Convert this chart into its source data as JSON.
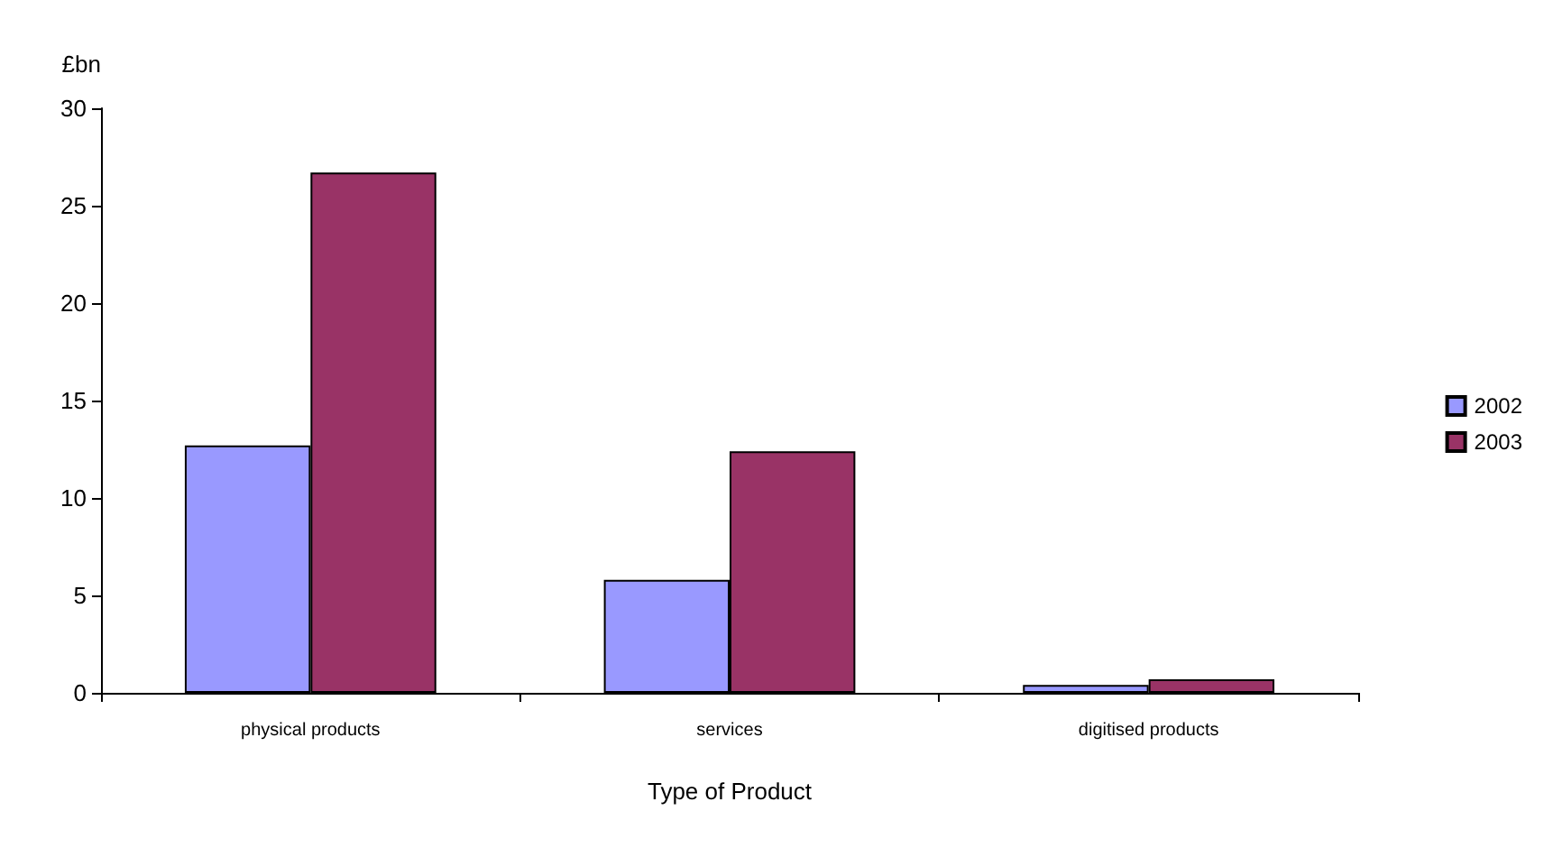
{
  "chart_data": {
    "type": "bar",
    "ylabel": "£bn",
    "xlabel": "Type of Product",
    "categories": [
      "physical products",
      "services",
      "digitised products"
    ],
    "series": [
      {
        "name": "2002",
        "color": "#9999ff",
        "values": [
          12.7,
          5.8,
          0.4
        ]
      },
      {
        "name": "2003",
        "color": "#993366",
        "values": [
          26.7,
          12.4,
          0.7
        ]
      }
    ],
    "ylim": [
      0,
      30
    ],
    "yticks": [
      0,
      5,
      10,
      15,
      20,
      25,
      30
    ],
    "grid": false,
    "legend": "right"
  }
}
